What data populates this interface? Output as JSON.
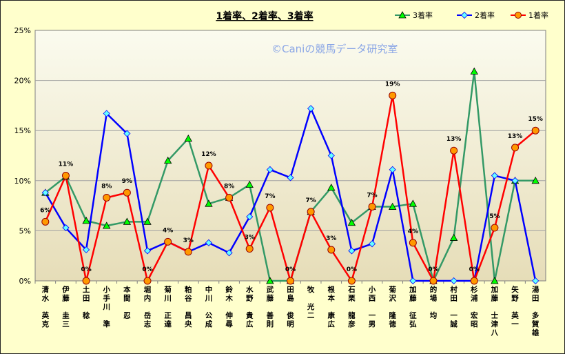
{
  "chart_data": {
    "type": "line",
    "title": "1着率、2着率、3着率",
    "watermark": "©Caniの競馬データ研究室",
    "ylim": [
      0,
      0.25
    ],
    "yticks": [
      "0%",
      "5%",
      "10%",
      "15%",
      "20%",
      "25%"
    ],
    "grid": true,
    "legend_position": "top-right",
    "categories": [
      "清水　英克",
      "伊藤　圭三",
      "土田　稔",
      "小手川　準",
      "本間　忍",
      "堀内　岳志",
      "菊川　正達",
      "粕谷　昌央",
      "中川　公成",
      "鈴木　伸尋",
      "水野　貴広",
      "武藤　善則",
      "田島　俊明",
      "牧　光二",
      "根本　康広",
      "石栗　龍彦",
      "小西　一男",
      "菊沢　隆徳",
      "加藤　征弘",
      "的場　均",
      "村田　一誠",
      "杉浦　宏昭",
      "加藤　士津八",
      "矢野　英一",
      "湯田　多賀雄"
    ],
    "series": [
      {
        "name": "3着率",
        "color": "#339966",
        "marker": "triangle",
        "values": [
          0.088,
          0.104,
          0.06,
          0.055,
          0.059,
          0.059,
          0.12,
          0.142,
          0.077,
          0.083,
          0.096,
          0.0,
          0.0,
          0.069,
          0.093,
          0.058,
          0.074,
          0.074,
          0.077,
          0.0,
          0.043,
          0.209,
          0.0,
          0.1,
          0.1
        ]
      },
      {
        "name": "2着率",
        "color": "#0000ff",
        "marker": "diamond",
        "values": [
          0.088,
          0.053,
          0.031,
          0.167,
          0.147,
          0.03,
          0.039,
          0.029,
          0.038,
          0.028,
          0.064,
          0.111,
          0.103,
          0.172,
          0.125,
          0.03,
          0.037,
          0.111,
          0.0,
          0.0,
          0.0,
          0.0,
          0.105,
          0.1,
          0.0
        ]
      },
      {
        "name": "1着率",
        "color": "#ff0000",
        "marker": "circle",
        "values": [
          0.059,
          0.105,
          0.0,
          0.083,
          0.088,
          0.0,
          0.039,
          0.029,
          0.115,
          0.083,
          0.032,
          0.073,
          0.0,
          0.069,
          0.031,
          0.0,
          0.074,
          0.185,
          0.038,
          0.0,
          0.13,
          0.0,
          0.053,
          0.133,
          0.15
        ],
        "labels": [
          "6%",
          "11%",
          "0%",
          "8%",
          "9%",
          "0%",
          "4%",
          "3%",
          "12%",
          "8%",
          "3%",
          "7%",
          "0%",
          "7%",
          "3%",
          "0%",
          "7%",
          "19%",
          "4%",
          "0%",
          "13%",
          "0%",
          "5%",
          "13%",
          "15%"
        ]
      }
    ]
  }
}
